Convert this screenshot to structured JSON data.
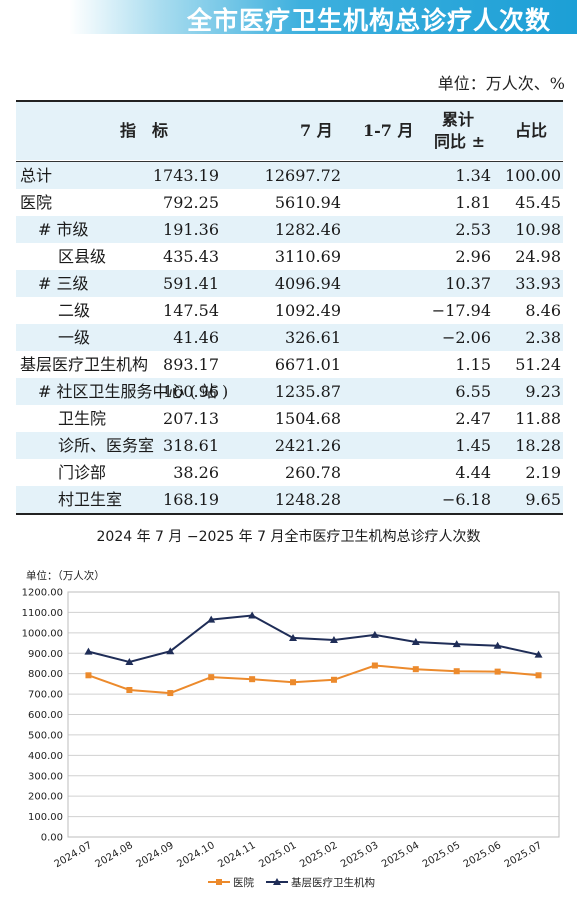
{
  "banner": {
    "title": "全市医疗卫生机构总诊疗人次数",
    "color": "#1c9fd6"
  },
  "table": {
    "unit": "单位：万人次、%",
    "headers": {
      "indicator": "指　标",
      "month": "7 月",
      "ytd": "1-7 月",
      "yoy_line1": "累计",
      "yoy_line2": "同比 ±",
      "share": "占比"
    },
    "rows": [
      {
        "name": "总计",
        "indent": 0,
        "shaded": true,
        "month": "1743.19",
        "ytd": "12697.72",
        "yoy": "1.34",
        "share": "100.00"
      },
      {
        "name": "医院",
        "indent": 0,
        "shaded": false,
        "month": "792.25",
        "ytd": "5610.94",
        "yoy": "1.81",
        "share": "45.45"
      },
      {
        "name": "# 市级",
        "indent": 1,
        "shaded": true,
        "month": "191.36",
        "ytd": "1282.46",
        "yoy": "2.53",
        "share": "10.98"
      },
      {
        "name": "区县级",
        "indent": 2,
        "shaded": false,
        "month": "435.43",
        "ytd": "3110.69",
        "yoy": "2.96",
        "share": "24.98"
      },
      {
        "name": "# 三级",
        "indent": 1,
        "shaded": true,
        "month": "591.41",
        "ytd": "4096.94",
        "yoy": "10.37",
        "share": "33.93"
      },
      {
        "name": "二级",
        "indent": 2,
        "shaded": false,
        "month": "147.54",
        "ytd": "1092.49",
        "yoy": "−17.94",
        "share": "8.46"
      },
      {
        "name": "一级",
        "indent": 2,
        "shaded": true,
        "month": "41.46",
        "ytd": "326.61",
        "yoy": "−2.06",
        "share": "2.38"
      },
      {
        "name": "基层医疗卫生机构",
        "indent": 0,
        "shaded": false,
        "month": "893.17",
        "ytd": "6671.01",
        "yoy": "1.15",
        "share": "51.24"
      },
      {
        "name": "# 社区卫生服务中心 ( 站 )",
        "indent": 1,
        "shaded": true,
        "month": "160.96",
        "ytd": "1235.87",
        "yoy": "6.55",
        "share": "9.23"
      },
      {
        "name": "卫生院",
        "indent": 2,
        "shaded": false,
        "month": "207.13",
        "ytd": "1504.68",
        "yoy": "2.47",
        "share": "11.88"
      },
      {
        "name": "诊所、医务室",
        "indent": 2,
        "shaded": true,
        "month": "318.61",
        "ytd": "2421.26",
        "yoy": "1.45",
        "share": "18.28"
      },
      {
        "name": "门诊部",
        "indent": 2,
        "shaded": false,
        "month": "38.26",
        "ytd": "260.78",
        "yoy": "4.44",
        "share": "2.19"
      },
      {
        "name": "村卫生室",
        "indent": 2,
        "shaded": true,
        "month": "168.19",
        "ytd": "1248.28",
        "yoy": "−6.18",
        "share": "9.65"
      }
    ]
  },
  "chart_data": {
    "type": "line",
    "title": "2024 年 7 月 −2025 年 7 月全市医疗卫生机构总诊疗人次数",
    "unit_label": "单位：（万人次）",
    "categories": [
      "2024.07",
      "2024.08",
      "2024.09",
      "2024.10",
      "2024.11",
      "2025.01",
      "2025.02",
      "2025.03",
      "2025.04",
      "2025.05",
      "2025.06",
      "2025.07"
    ],
    "series": [
      {
        "name": "医院",
        "color": "#ec8a2c",
        "marker": "square",
        "values": [
          792,
          720,
          705,
          783,
          773,
          758,
          770,
          840,
          822,
          812,
          810,
          792
        ]
      },
      {
        "name": "基层医疗卫生机构",
        "color": "#1f2d57",
        "marker": "triangle",
        "values": [
          908,
          857,
          910,
          1065,
          1085,
          975,
          965,
          990,
          955,
          945,
          937,
          893
        ]
      }
    ],
    "ylim": [
      0,
      1200
    ],
    "yticks": [
      "0.00",
      "100.00",
      "200.00",
      "300.00",
      "400.00",
      "500.00",
      "600.00",
      "700.00",
      "800.00",
      "900.00",
      "1000.00",
      "1100.00",
      "1200.00"
    ],
    "grid": true,
    "legend": "bottom"
  }
}
